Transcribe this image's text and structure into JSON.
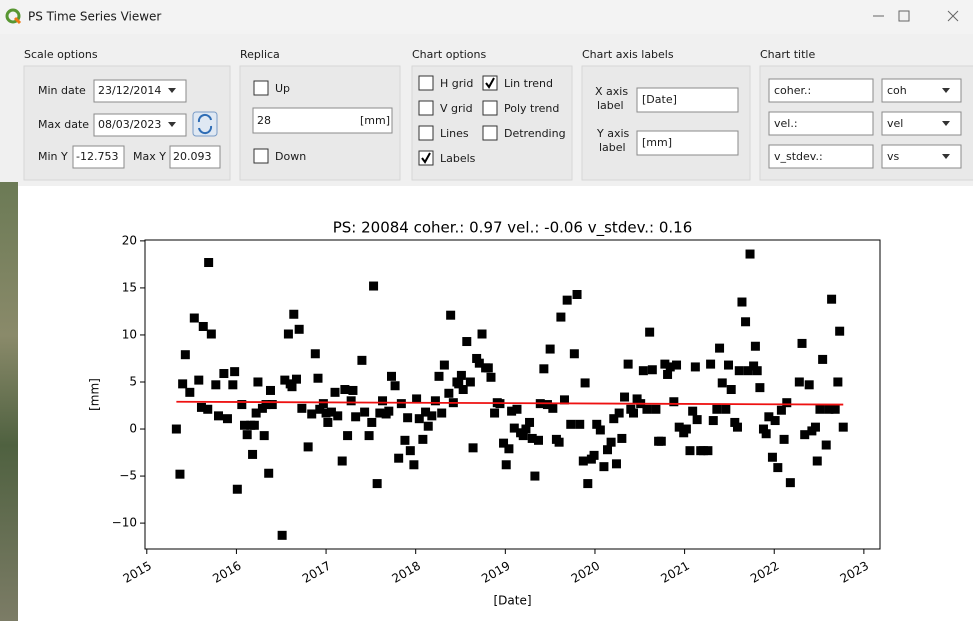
{
  "window": {
    "title": "PS Time Series Viewer"
  },
  "scale_options": {
    "title": "Scale options",
    "min_date_label": "Min date",
    "min_date": "23/12/2014",
    "max_date_label": "Max date",
    "max_date": "08/03/2023",
    "min_y_label": "Min Y",
    "min_y": "-12.753",
    "max_y_label": "Max Y",
    "max_y": "20.093"
  },
  "replica": {
    "title": "Replica",
    "up": {
      "label": "Up",
      "checked": false
    },
    "value": "28",
    "unit": "[mm]",
    "down": {
      "label": "Down",
      "checked": false
    }
  },
  "chart_options": {
    "title": "Chart options",
    "checkboxes": [
      {
        "label": "H grid",
        "checked": false
      },
      {
        "label": "Lin trend",
        "checked": true
      },
      {
        "label": "V grid",
        "checked": false
      },
      {
        "label": "Poly trend",
        "checked": false
      },
      {
        "label": "Lines",
        "checked": false
      },
      {
        "label": "Detrending",
        "checked": false
      },
      {
        "label": "Labels",
        "checked": true
      }
    ]
  },
  "axis_labels": {
    "title": "Chart axis labels",
    "x_caption": [
      "X axis",
      "label"
    ],
    "x_value": "[Date]",
    "y_caption": [
      "Y axis",
      "label"
    ],
    "y_value": "[mm]"
  },
  "chart_title_options": {
    "title": "Chart title",
    "rows": [
      {
        "text": "coher.:",
        "choice": "coh"
      },
      {
        "text": "vel.:",
        "choice": "vel"
      },
      {
        "text": "v_stdev.:",
        "choice": "vs"
      }
    ]
  },
  "chart_data": {
    "type": "scatter",
    "title": "PS: 20084 coher.: 0.97 vel.: -0.06 v_stdev.: 0.16",
    "xlabel": "[Date]",
    "ylabel": "[mm]",
    "grid": false,
    "xlim": [
      2014.98,
      2023.18
    ],
    "xticks": [
      2015,
      2016,
      2017,
      2018,
      2019,
      2020,
      2021,
      2022,
      2023
    ],
    "ylim": [
      -12.753,
      20.093
    ],
    "yticks": [
      {
        "value": -10,
        "label": "−10"
      },
      {
        "value": -5,
        "label": "−5"
      },
      0,
      5,
      10,
      15,
      20
    ],
    "series": [
      {
        "kind": "markers",
        "color": "#000000",
        "x": [
          2015.33,
          2015.37,
          2015.4,
          2015.43,
          2015.48,
          2015.53,
          2015.58,
          2015.61,
          2015.63,
          2015.68,
          2015.69,
          2015.72,
          2015.77,
          2015.8,
          2015.86,
          2015.9,
          2015.96,
          2015.98,
          2016.01,
          2016.06,
          2016.09,
          2016.12,
          2016.16,
          2016.18,
          2016.2,
          2016.22,
          2016.24,
          2016.29,
          2016.31,
          2016.33,
          2016.36,
          2016.38,
          2016.4,
          2016.51,
          2016.54,
          2016.58,
          2016.6,
          2016.62,
          2016.64,
          2016.67,
          2016.7,
          2016.73,
          2016.8,
          2016.84,
          2016.88,
          2016.91,
          2016.93,
          2016.97,
          2017.0,
          2017.02,
          2017.06,
          2017.1,
          2017.13,
          2017.18,
          2017.21,
          2017.24,
          2017.28,
          2017.3,
          2017.33,
          2017.4,
          2017.43,
          2017.48,
          2017.51,
          2017.53,
          2017.57,
          2017.6,
          2017.63,
          2017.67,
          2017.7,
          2017.73,
          2017.77,
          2017.81,
          2017.84,
          2017.88,
          2017.91,
          2017.94,
          2017.98,
          2018.01,
          2018.04,
          2018.08,
          2018.11,
          2018.14,
          2018.18,
          2018.22,
          2018.26,
          2018.29,
          2018.32,
          2018.37,
          2018.39,
          2018.42,
          2018.46,
          2018.48,
          2018.51,
          2018.53,
          2018.57,
          2018.61,
          2018.64,
          2018.68,
          2018.71,
          2018.74,
          2018.78,
          2018.81,
          2018.84,
          2018.88,
          2018.91,
          2018.94,
          2018.98,
          2019.01,
          2019.04,
          2019.07,
          2019.1,
          2019.13,
          2019.17,
          2019.2,
          2019.23,
          2019.27,
          2019.3,
          2019.33,
          2019.37,
          2019.39,
          2019.43,
          2019.47,
          2019.5,
          2019.53,
          2019.57,
          2019.6,
          2019.62,
          2019.66,
          2019.69,
          2019.73,
          2019.77,
          2019.8,
          2019.83,
          2019.87,
          2019.89,
          2019.92,
          2019.96,
          2019.99,
          2020.02,
          2020.06,
          2020.1,
          2020.14,
          2020.18,
          2020.21,
          2020.24,
          2020.27,
          2020.3,
          2020.33,
          2020.37,
          2020.4,
          2020.43,
          2020.47,
          2020.51,
          2020.54,
          2020.58,
          2020.61,
          2020.64,
          2020.68,
          2020.71,
          2020.74,
          2020.78,
          2020.81,
          2020.84,
          2020.88,
          2020.91,
          2020.94,
          2020.99,
          2021.02,
          2021.06,
          2021.09,
          2021.12,
          2021.14,
          2021.18,
          2021.21,
          2021.26,
          2021.29,
          2021.32,
          2021.36,
          2021.39,
          2021.42,
          2021.46,
          2021.49,
          2021.52,
          2021.56,
          2021.59,
          2021.61,
          2021.64,
          2021.68,
          2021.71,
          2021.73,
          2021.77,
          2021.79,
          2021.81,
          2021.84,
          2021.88,
          2021.91,
          2021.94,
          2021.98,
          2022.01,
          2022.04,
          2022.08,
          2022.11,
          2022.14,
          2022.18,
          2022.28,
          2022.31,
          2022.34,
          2022.39,
          2022.42,
          2022.46,
          2022.48,
          2022.51,
          2022.54,
          2022.58,
          2022.61,
          2022.64,
          2022.68,
          2022.71,
          2022.73,
          2022.77
        ],
        "values": [
          0.0,
          -4.8,
          4.8,
          7.9,
          3.9,
          11.8,
          5.2,
          2.3,
          10.9,
          2.1,
          17.7,
          10.1,
          4.7,
          1.4,
          5.9,
          1.1,
          4.7,
          6.1,
          -6.4,
          2.6,
          0.4,
          -0.6,
          0.4,
          -2.7,
          0.4,
          1.7,
          5.0,
          2.2,
          -0.7,
          2.6,
          -4.7,
          4.1,
          2.6,
          -11.3,
          5.2,
          10.1,
          4.8,
          4.5,
          12.2,
          5.3,
          10.6,
          2.2,
          -1.9,
          1.6,
          8.0,
          5.4,
          2.1,
          2.7,
          1.7,
          0.7,
          1.8,
          3.9,
          1.4,
          -3.4,
          4.2,
          -0.7,
          3.0,
          4.1,
          1.3,
          7.3,
          1.8,
          -0.7,
          0.7,
          15.2,
          -5.8,
          1.7,
          3.0,
          1.6,
          1.9,
          5.6,
          4.6,
          -3.1,
          2.7,
          -1.2,
          1.2,
          -2.3,
          -3.8,
          3.2,
          1.1,
          -1.1,
          1.8,
          0.3,
          1.4,
          3.0,
          5.6,
          1.7,
          6.8,
          3.8,
          12.1,
          2.8,
          5.0,
          4.8,
          5.7,
          4.2,
          9.3,
          5.0,
          -2.0,
          7.5,
          7.0,
          10.1,
          6.5,
          6.5,
          5.5,
          1.7,
          2.8,
          2.7,
          -1.5,
          -3.8,
          -2.1,
          1.9,
          0.1,
          2.1,
          -0.4,
          -0.7,
          0.0,
          0.7,
          -1.0,
          -5.0,
          -1.2,
          2.7,
          6.4,
          2.6,
          8.5,
          2.2,
          -1.1,
          -1.4,
          11.9,
          3.1,
          13.7,
          0.5,
          8.0,
          14.3,
          0.5,
          -3.4,
          4.9,
          -5.8,
          -3.2,
          -2.8,
          0.5,
          -0.1,
          -4.0,
          -2.2,
          -1.4,
          1.1,
          -3.7,
          1.7,
          -1.0,
          3.4,
          6.9,
          2.1,
          1.7,
          3.2,
          2.7,
          6.2,
          2.1,
          10.3,
          6.3,
          2.1,
          -1.3,
          -1.3,
          6.9,
          5.8,
          6.6,
          2.9,
          6.8,
          0.2,
          -0.4,
          0.0,
          -2.3,
          1.9,
          6.6,
          1.0,
          -2.3,
          -2.3,
          -2.3,
          6.9,
          0.9,
          2.1,
          8.6,
          4.9,
          2.1,
          6.8,
          4.2,
          0.7,
          0.2,
          6.2,
          13.5,
          11.4,
          6.2,
          18.6,
          6.7,
          8.8,
          6.2,
          4.4,
          0.0,
          -0.5,
          1.3,
          -3.0,
          0.9,
          -4.1,
          2.0,
          -1.1,
          2.8,
          -5.7,
          5.0,
          9.1,
          -0.6,
          4.7,
          -0.2,
          0.2,
          -3.4,
          2.1,
          7.4,
          -1.7,
          2.1,
          13.8,
          2.1,
          5.0,
          10.4,
          0.2
        ]
      },
      {
        "kind": "line",
        "color": "#ee1111",
        "x": [
          2015.33,
          2022.77
        ],
        "values": [
          2.9,
          2.6
        ]
      }
    ]
  }
}
